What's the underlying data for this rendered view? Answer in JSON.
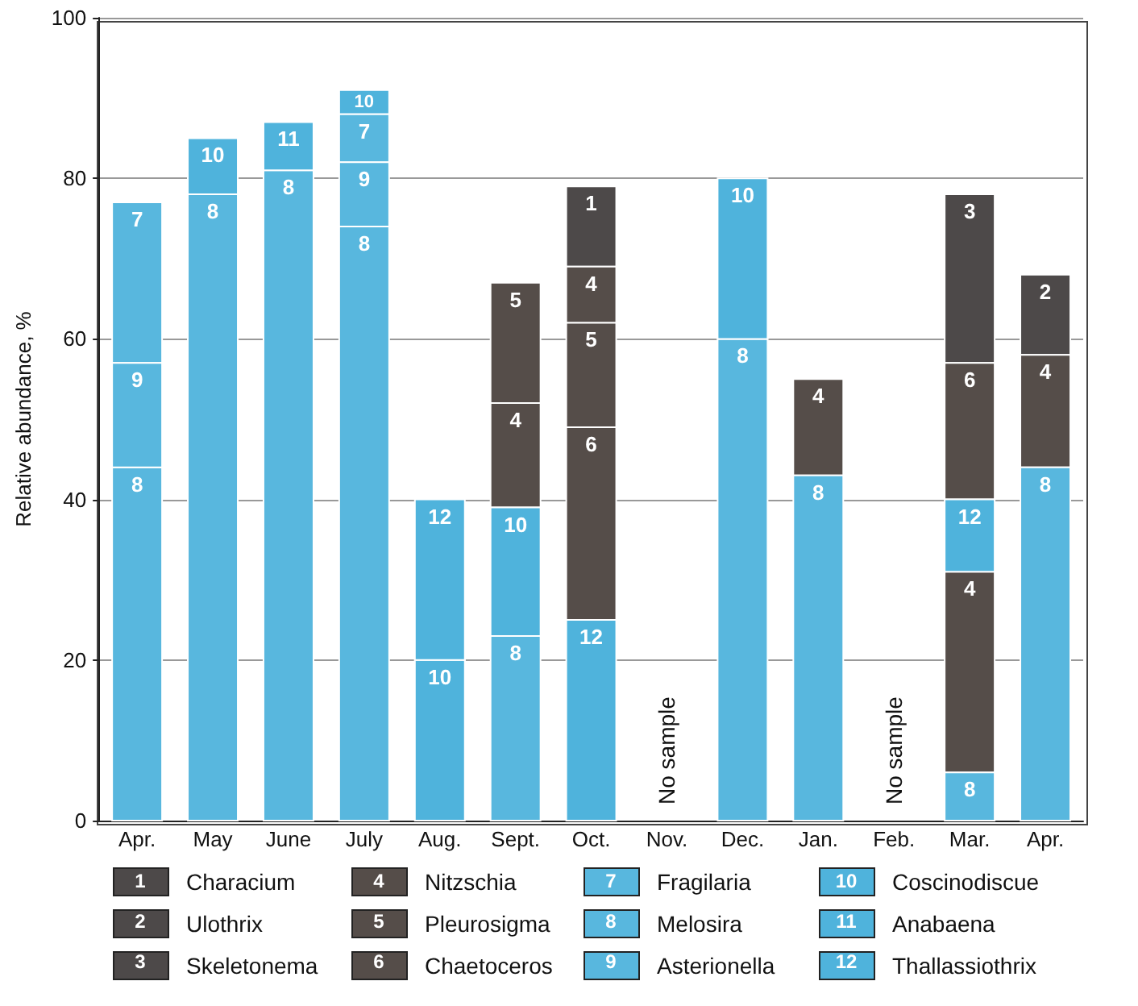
{
  "chart_data": {
    "type": "bar",
    "ylabel": "Relative abundance, %",
    "categories": [
      "Apr.",
      "May",
      "June",
      "July",
      "Aug.",
      "Sept.",
      "Oct.",
      "Nov.",
      "Dec.",
      "Jan.",
      "Feb.",
      "Mar.",
      "Apr."
    ],
    "series": [
      {
        "name": "Characium",
        "color": "#4d4949",
        "values": [
          null,
          null,
          null,
          null,
          null,
          null,
          10,
          null,
          null,
          null,
          null,
          null,
          null
        ],
        "base": [
          null,
          null,
          null,
          null,
          null,
          null,
          69,
          null,
          null,
          null,
          null,
          null,
          null
        ]
      },
      {
        "name": "Ulothrix",
        "color": "#4d4949",
        "values": [
          null,
          null,
          null,
          null,
          null,
          null,
          null,
          null,
          null,
          null,
          null,
          null,
          10
        ],
        "base": [
          null,
          null,
          null,
          null,
          null,
          null,
          null,
          null,
          null,
          null,
          null,
          null,
          58
        ]
      },
      {
        "name": "Skeletonema",
        "color": "#4d4949",
        "values": [
          null,
          null,
          null,
          null,
          null,
          null,
          null,
          null,
          null,
          null,
          null,
          21,
          null
        ],
        "base": [
          null,
          null,
          null,
          null,
          null,
          null,
          null,
          null,
          null,
          null,
          null,
          57,
          null
        ]
      },
      {
        "name": "Nitzschia",
        "color": "#554d49",
        "values": [
          null,
          null,
          null,
          null,
          null,
          13,
          7,
          null,
          null,
          12,
          null,
          25,
          14
        ],
        "base": [
          null,
          null,
          null,
          null,
          null,
          39,
          62,
          null,
          null,
          43,
          null,
          6,
          44
        ]
      },
      {
        "name": "Pleurosigma",
        "color": "#554d49",
        "values": [
          null,
          null,
          null,
          null,
          null,
          15,
          13,
          null,
          null,
          null,
          null,
          null,
          null
        ],
        "base": [
          null,
          null,
          null,
          null,
          null,
          52,
          49,
          null,
          null,
          null,
          null,
          null,
          null
        ]
      },
      {
        "name": "Chaetoceros",
        "color": "#554d49",
        "values": [
          null,
          null,
          null,
          null,
          null,
          null,
          24,
          null,
          null,
          null,
          null,
          17,
          null
        ],
        "base": [
          null,
          null,
          null,
          null,
          null,
          null,
          25,
          null,
          null,
          null,
          null,
          40,
          null
        ]
      },
      {
        "name": "Fragilaria",
        "color": "#58b7de",
        "values": [
          20,
          null,
          null,
          6,
          null,
          null,
          null,
          null,
          null,
          null,
          null,
          null,
          null
        ],
        "base": [
          57,
          null,
          null,
          82,
          null,
          null,
          null,
          null,
          null,
          null,
          null,
          null,
          null
        ]
      },
      {
        "name": "Melosira",
        "color": "#58b7de",
        "values": [
          44,
          78,
          81,
          74,
          null,
          23,
          null,
          null,
          60,
          43,
          null,
          6,
          44
        ],
        "base": [
          0,
          0,
          0,
          0,
          null,
          0,
          null,
          null,
          0,
          0,
          null,
          0,
          0
        ]
      },
      {
        "name": "Asterionella",
        "color": "#58b7de",
        "values": [
          13,
          null,
          null,
          8,
          null,
          null,
          null,
          null,
          null,
          null,
          null,
          null,
          null
        ],
        "base": [
          44,
          null,
          null,
          74,
          null,
          null,
          null,
          null,
          null,
          null,
          null,
          null,
          null
        ]
      },
      {
        "name": "Coscinodiscue",
        "color": "#4fb3dc",
        "values": [
          null,
          7,
          null,
          3,
          20,
          16,
          null,
          null,
          20,
          null,
          null,
          null,
          null
        ],
        "base": [
          null,
          78,
          null,
          88,
          0,
          23,
          null,
          null,
          60,
          null,
          null,
          null,
          null
        ]
      },
      {
        "name": "Anabaena",
        "color": "#4fb3dc",
        "values": [
          null,
          null,
          6,
          null,
          null,
          null,
          null,
          null,
          null,
          null,
          null,
          null,
          null
        ],
        "base": [
          null,
          null,
          81,
          null,
          null,
          null,
          null,
          null,
          null,
          null,
          null,
          null,
          null
        ]
      },
      {
        "name": "Thallassiothrix",
        "color": "#4fb3dc",
        "values": [
          null,
          null,
          null,
          null,
          20,
          null,
          25,
          null,
          null,
          null,
          null,
          9,
          null
        ],
        "base": [
          null,
          null,
          null,
          null,
          20,
          null,
          0,
          null,
          null,
          null,
          null,
          31,
          null
        ]
      }
    ],
    "ylim": [
      0,
      100
    ],
    "yticks": [
      0,
      20,
      40,
      60,
      80,
      100
    ],
    "grid": "y",
    "legend": "bottom",
    "annotations": [
      "1",
      "2",
      "3",
      "4",
      "5",
      "6",
      "7",
      "8",
      "9",
      "10",
      "11",
      "12",
      "No sample",
      "No sample"
    ]
  }
}
